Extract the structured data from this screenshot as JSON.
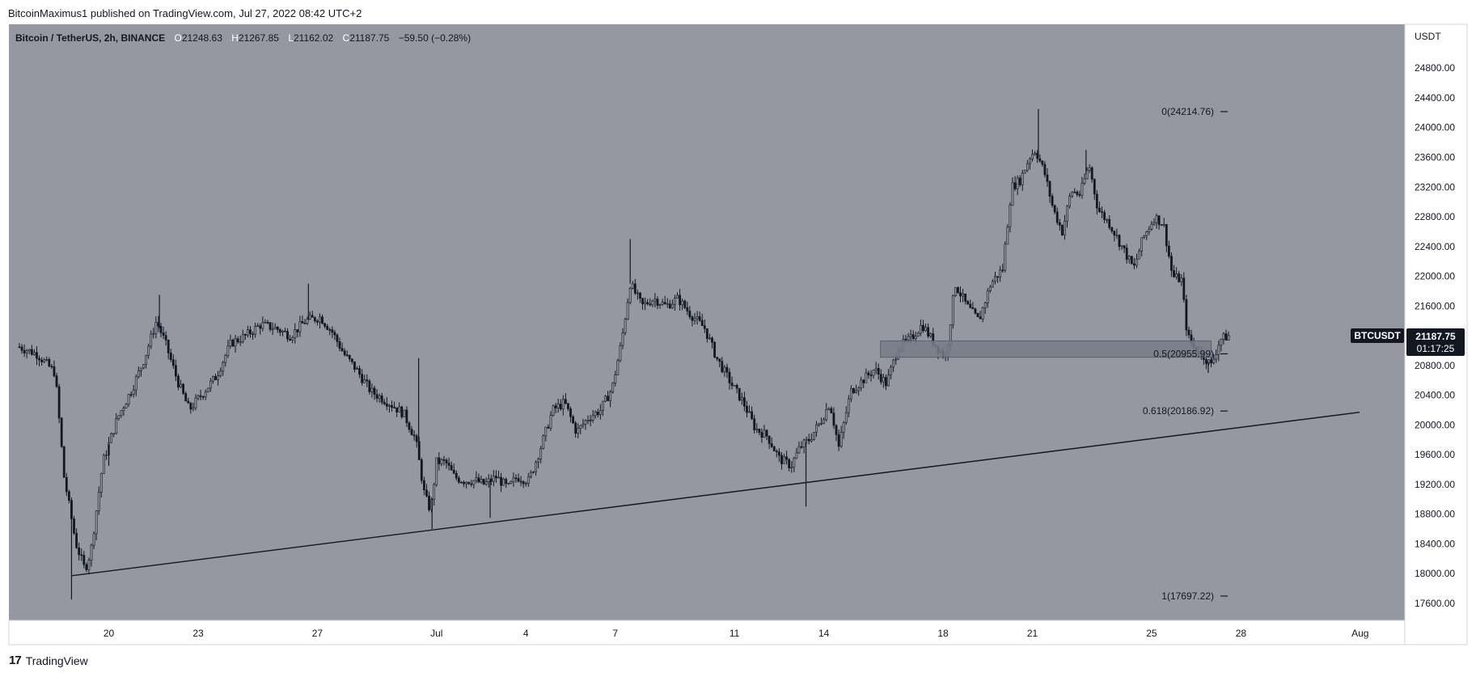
{
  "header": {
    "published_by": "BitcoinMaximus1 published on TradingView.com, Jul 27, 2022 08:42 UTC+2"
  },
  "footer": {
    "logo_glyph": "17",
    "brand": "TradingView"
  },
  "chart_data": {
    "type": "candlestick",
    "symbol_line": {
      "title": "Bitcoin / TetherUS, 2h, BINANCE",
      "o_label": "O",
      "o": "21248.63",
      "h_label": "H",
      "h": "21267.85",
      "l_label": "L",
      "l": "21162.02",
      "c_label": "C",
      "c": "21187.75",
      "change": "−59.50 (−0.28%)"
    },
    "currency": "USDT",
    "ylim": [
      17370,
      25390
    ],
    "y_ticks": [
      17600,
      18000,
      18400,
      18800,
      19200,
      19600,
      20000,
      20400,
      20800,
      21200,
      21600,
      22000,
      22400,
      22800,
      23200,
      23600,
      24000,
      24400,
      24800
    ],
    "y_tick_labels": [
      "17600.00",
      "18000.00",
      "18400.00",
      "18800.00",
      "19200.00",
      "19600.00",
      "20000.00",
      "20400.00",
      "20800.00",
      "21200.00",
      "21600.00",
      "22000.00",
      "22400.00",
      "22800.00",
      "23200.00",
      "23600.00",
      "24000.00",
      "24400.00",
      "24800.00"
    ],
    "x_range_days": [
      17,
      33.5
    ],
    "x_ticks": [
      {
        "day": 20,
        "label": "20"
      },
      {
        "day": 23,
        "label": "23"
      },
      {
        "day": 27,
        "label": "27"
      },
      {
        "day": 31,
        "label": "Jul"
      },
      {
        "day": 34,
        "label": "4"
      },
      {
        "day": 37,
        "label": "7"
      },
      {
        "day": 41,
        "label": "11"
      },
      {
        "day": 44,
        "label": "14"
      },
      {
        "day": 48,
        "label": "18"
      },
      {
        "day": 51,
        "label": "21"
      },
      {
        "day": 55,
        "label": "25"
      },
      {
        "day": 58,
        "label": "28"
      },
      {
        "day": 62,
        "label": "Aug"
      }
    ],
    "price_path": [
      [
        17.0,
        21050
      ],
      [
        17.6,
        20950
      ],
      [
        18.2,
        20700
      ],
      [
        18.5,
        19300
      ],
      [
        18.9,
        18400
      ],
      [
        19.2,
        18050
      ],
      [
        19.4,
        18300
      ],
      [
        19.8,
        19500
      ],
      [
        20.3,
        20100
      ],
      [
        20.8,
        20500
      ],
      [
        21.2,
        20900
      ],
      [
        21.6,
        21400
      ],
      [
        21.9,
        21100
      ],
      [
        22.3,
        20600
      ],
      [
        22.7,
        20200
      ],
      [
        23.1,
        20400
      ],
      [
        23.6,
        20650
      ],
      [
        24.1,
        21100
      ],
      [
        24.6,
        21200
      ],
      [
        25.1,
        21350
      ],
      [
        25.6,
        21300
      ],
      [
        26.1,
        21200
      ],
      [
        26.6,
        21400
      ],
      [
        27.1,
        21450
      ],
      [
        27.5,
        21250
      ],
      [
        27.9,
        20950
      ],
      [
        28.3,
        20750
      ],
      [
        28.8,
        20450
      ],
      [
        29.4,
        20300
      ],
      [
        29.9,
        20150
      ],
      [
        30.3,
        19800
      ],
      [
        30.6,
        19050
      ],
      [
        30.8,
        18850
      ],
      [
        31.0,
        19500
      ],
      [
        31.3,
        19500
      ],
      [
        31.6,
        19300
      ],
      [
        31.9,
        19250
      ],
      [
        32.3,
        19250
      ],
      [
        32.6,
        19200
      ],
      [
        33.0,
        19300
      ],
      [
        33.4,
        19150
      ],
      [
        33.7,
        19300
      ],
      [
        34.1,
        19250
      ],
      [
        34.5,
        19700
      ],
      [
        34.9,
        20200
      ],
      [
        35.3,
        20300
      ],
      [
        35.7,
        19900
      ],
      [
        36.1,
        20100
      ],
      [
        36.5,
        20200
      ],
      [
        36.9,
        20500
      ],
      [
        37.2,
        21100
      ],
      [
        37.5,
        21900
      ],
      [
        37.9,
        21600
      ],
      [
        38.3,
        21700
      ],
      [
        38.7,
        21600
      ],
      [
        39.1,
        21700
      ],
      [
        39.5,
        21500
      ],
      [
        40.0,
        21300
      ],
      [
        40.4,
        20900
      ],
      [
        40.9,
        20550
      ],
      [
        41.3,
        20300
      ],
      [
        41.7,
        19950
      ],
      [
        42.1,
        19850
      ],
      [
        42.5,
        19550
      ],
      [
        42.9,
        19450
      ],
      [
        43.2,
        19700
      ],
      [
        43.5,
        19800
      ],
      [
        43.9,
        20050
      ],
      [
        44.2,
        20300
      ],
      [
        44.5,
        19700
      ],
      [
        44.9,
        20450
      ],
      [
        45.3,
        20600
      ],
      [
        45.7,
        20750
      ],
      [
        46.1,
        20550
      ],
      [
        46.5,
        21050
      ],
      [
        46.9,
        21150
      ],
      [
        47.3,
        21350
      ],
      [
        47.7,
        21100
      ],
      [
        48.1,
        20900
      ],
      [
        48.4,
        21900
      ],
      [
        48.8,
        21600
      ],
      [
        49.2,
        21400
      ],
      [
        49.6,
        21900
      ],
      [
        50.0,
        22100
      ],
      [
        50.3,
        23200
      ],
      [
        50.6,
        23300
      ],
      [
        50.9,
        23600
      ],
      [
        51.1,
        23700
      ],
      [
        51.4,
        23400
      ],
      [
        51.7,
        22900
      ],
      [
        52.0,
        22600
      ],
      [
        52.3,
        23150
      ],
      [
        52.6,
        23100
      ],
      [
        52.9,
        23500
      ],
      [
        53.2,
        22900
      ],
      [
        53.6,
        22700
      ],
      [
        54.0,
        22400
      ],
      [
        54.4,
        22100
      ],
      [
        54.7,
        22500
      ],
      [
        55.1,
        22800
      ],
      [
        55.4,
        22700
      ],
      [
        55.7,
        22000
      ],
      [
        56.0,
        21950
      ],
      [
        56.2,
        21200
      ],
      [
        56.4,
        21050
      ],
      [
        56.7,
        20950
      ],
      [
        57.0,
        20800
      ],
      [
        57.3,
        21150
      ],
      [
        57.6,
        21200
      ]
    ],
    "spikes": [
      {
        "day": 18.75,
        "low": 17650
      },
      {
        "day": 20.0,
        "high": 19450
      },
      {
        "day": 21.7,
        "high": 21750
      },
      {
        "day": 26.7,
        "high": 21900
      },
      {
        "day": 30.4,
        "high": 20900
      },
      {
        "day": 30.85,
        "low": 18600
      },
      {
        "day": 32.8,
        "low": 18750
      },
      {
        "day": 37.5,
        "high": 22500
      },
      {
        "day": 43.4,
        "low": 18900
      },
      {
        "day": 51.2,
        "high": 24250
      },
      {
        "day": 52.8,
        "high": 23700
      },
      {
        "day": 56.9,
        "low": 20700
      }
    ],
    "trendline": {
      "from": [
        18.75,
        17970
      ],
      "to": [
        61.98,
        20170
      ]
    },
    "support_zone": {
      "from_day": 45.9,
      "to_day": 57.0,
      "low": 20910,
      "high": 21130
    },
    "fib_levels": [
      {
        "ratio": "0",
        "price": 24214.76,
        "label": "0(24214.76)"
      },
      {
        "ratio": "0.5",
        "price": 20955.99,
        "label": "0.5(20955.99)"
      },
      {
        "ratio": "0.618",
        "price": 20186.92,
        "label": "0.618(20186.92)"
      },
      {
        "ratio": "1",
        "price": 17697.22,
        "label": "1(17697.22)"
      }
    ],
    "last_price": {
      "symbol": "BTCUSDT",
      "price": "21187.75",
      "countdown": "01:17:25"
    },
    "colors": {
      "plot_bg": "#9598a1",
      "candles": "#131722",
      "zone": "#787b86",
      "tag_bg": "#131722",
      "tag_text": "#ffffff"
    }
  }
}
